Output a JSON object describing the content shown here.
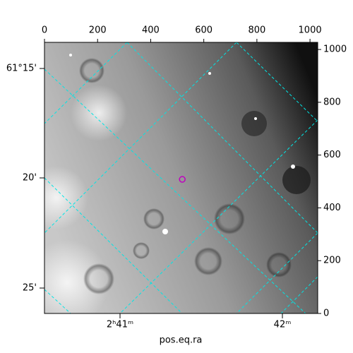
{
  "chart_data": {
    "type": "image",
    "xlabel": "pos.eq.ra",
    "xlim": [
      0,
      1029
    ],
    "ylim": [
      0,
      1027
    ],
    "xticks": [
      0,
      200,
      400,
      600,
      800,
      1000
    ],
    "yticks": [
      0,
      200,
      400,
      600,
      800,
      1000
    ],
    "world_x_labels": [
      "2ʰ41ᵐ",
      "42ᵐ"
    ],
    "world_y_labels": [
      "61°15'",
      "20'",
      "25'"
    ],
    "grid_color": "#00e5e5",
    "points": {
      "x": [
        519
      ],
      "y": [
        508
      ],
      "color": "#c000c0"
    }
  }
}
